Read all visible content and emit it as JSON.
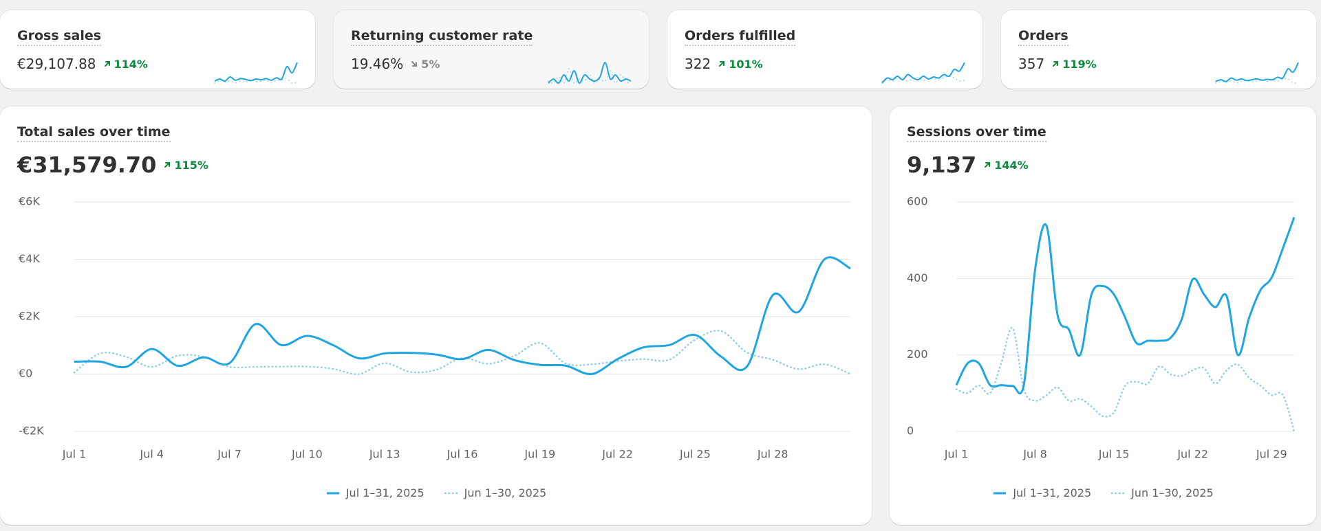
{
  "kpis": [
    {
      "title": "Gross sales",
      "value": "€29,107.88",
      "change": "114%",
      "direction": "up",
      "spark": {
        "current": [
          3,
          3.5,
          3,
          4,
          3.2,
          3.6,
          3.4,
          3.1,
          3.5,
          3.3,
          3.6,
          3.2,
          3.8,
          3.5,
          6.5,
          5,
          7.5
        ],
        "previous": [
          2.5,
          3.2,
          2.8,
          3,
          2.6,
          3,
          2.7,
          3.4,
          2.8,
          3,
          3.2,
          2.7,
          3.1,
          3.3,
          3.6,
          2.5,
          2.8
        ]
      }
    },
    {
      "title": "Returning customer rate",
      "value": "19.46%",
      "change": "5%",
      "direction": "down",
      "spark": {
        "current": [
          3,
          4,
          3,
          5,
          3.5,
          6,
          3,
          5,
          4,
          3.5,
          4.5,
          8,
          4,
          5,
          3.5,
          4,
          3.5
        ],
        "previous": [
          3.5,
          3,
          4.5,
          3,
          6.5,
          3,
          4,
          3.5,
          5,
          3,
          4,
          3.5,
          6,
          3,
          5,
          3.5,
          3
        ]
      }
    },
    {
      "title": "Orders fulfilled",
      "value": "322",
      "change": "101%",
      "direction": "up",
      "spark": {
        "current": [
          2,
          3.5,
          3,
          4,
          3,
          4.5,
          3.5,
          3,
          4,
          3.2,
          3.8,
          3.5,
          4.5,
          4,
          6,
          5.5,
          8
        ],
        "previous": [
          2.5,
          3,
          2.6,
          3.5,
          3,
          2.7,
          3.2,
          3.6,
          2.8,
          3.1,
          3.4,
          3,
          3.6,
          4,
          3.5,
          2.6,
          2.8
        ]
      }
    },
    {
      "title": "Orders",
      "value": "357",
      "change": "119%",
      "direction": "up",
      "spark": {
        "current": [
          3,
          3.4,
          3,
          3.8,
          3.3,
          3.6,
          3.2,
          3.4,
          3.6,
          3.3,
          3.5,
          3.4,
          4,
          3.8,
          6,
          5.2,
          7.5
        ],
        "previous": [
          2.6,
          3,
          2.8,
          3.1,
          2.7,
          3,
          3.2,
          2.9,
          3.1,
          3.3,
          3,
          3.4,
          3.1,
          3.5,
          3.6,
          2.6,
          2.9
        ]
      }
    }
  ],
  "chart_data": [
    {
      "type": "line",
      "title": "Total sales over time",
      "total": "€31,579.70",
      "change": "115%",
      "direction": "up",
      "categories": [
        "Jul 1",
        null,
        null,
        "Jul 4",
        null,
        null,
        "Jul 7",
        null,
        null,
        "Jul 10",
        null,
        null,
        "Jul 13",
        null,
        null,
        "Jul 16",
        null,
        null,
        "Jul 19",
        null,
        null,
        "Jul 22",
        null,
        null,
        "Jul 25",
        null,
        null,
        "Jul 28",
        null,
        null,
        null
      ],
      "series": [
        {
          "name": "Jul 1–31, 2025",
          "color": "#1fa5e0",
          "style": "solid",
          "values": [
            430,
            430,
            250,
            870,
            290,
            580,
            380,
            1740,
            1010,
            1330,
            1010,
            550,
            720,
            740,
            680,
            520,
            840,
            490,
            320,
            290,
            0,
            520,
            930,
            1010,
            1360,
            610,
            260,
            2750,
            2170,
            4000,
            3680
          ]
        },
        {
          "name": "Jun 1–30, 2025",
          "color": "#8ecde8",
          "style": "dotted",
          "values": [
            50,
            720,
            600,
            250,
            640,
            600,
            250,
            250,
            260,
            260,
            180,
            0,
            380,
            70,
            150,
            560,
            360,
            630,
            1080,
            370,
            340,
            450,
            520,
            500,
            1200,
            1500,
            750,
            500,
            170,
            340,
            0
          ]
        }
      ],
      "ylim": [
        -2000,
        6000
      ],
      "yticks": [
        {
          "value": -2000,
          "label": "-€2K"
        },
        {
          "value": 0,
          "label": "€0"
        },
        {
          "value": 2000,
          "label": "€2K"
        },
        {
          "value": 4000,
          "label": "€4K"
        },
        {
          "value": 6000,
          "label": "€6K"
        }
      ],
      "grid": true
    },
    {
      "type": "line",
      "title": "Sessions over time",
      "total": "9,137",
      "change": "144%",
      "direction": "up",
      "categories": [
        "Jul 1",
        null,
        null,
        null,
        null,
        null,
        null,
        "Jul 8",
        null,
        null,
        null,
        null,
        null,
        null,
        "Jul 15",
        null,
        null,
        null,
        null,
        null,
        null,
        "Jul 22",
        null,
        null,
        null,
        null,
        null,
        null,
        "Jul 29",
        null,
        null
      ],
      "series": [
        {
          "name": "Jul 1–31, 2025",
          "color": "#1fa5e0",
          "style": "solid",
          "values": [
            121,
            178,
            178,
            121,
            121,
            119,
            123,
            424,
            538,
            303,
            266,
            200,
            358,
            380,
            358,
            297,
            231,
            237,
            237,
            244,
            292,
            398,
            358,
            325,
            354,
            200,
            297,
            369,
            402,
            479,
            560
          ]
        },
        {
          "name": "Jun 1–30, 2025",
          "color": "#8ecde8",
          "style": "dotted",
          "values": [
            110,
            100,
            120,
            100,
            180,
            270,
            110,
            80,
            95,
            115,
            80,
            85,
            65,
            40,
            50,
            120,
            130,
            125,
            170,
            150,
            145,
            160,
            165,
            125,
            160,
            175,
            140,
            120,
            95,
            95,
            0
          ]
        }
      ],
      "ylim": [
        0,
        600
      ],
      "yticks": [
        0,
        200,
        400,
        600
      ],
      "grid": true
    }
  ]
}
